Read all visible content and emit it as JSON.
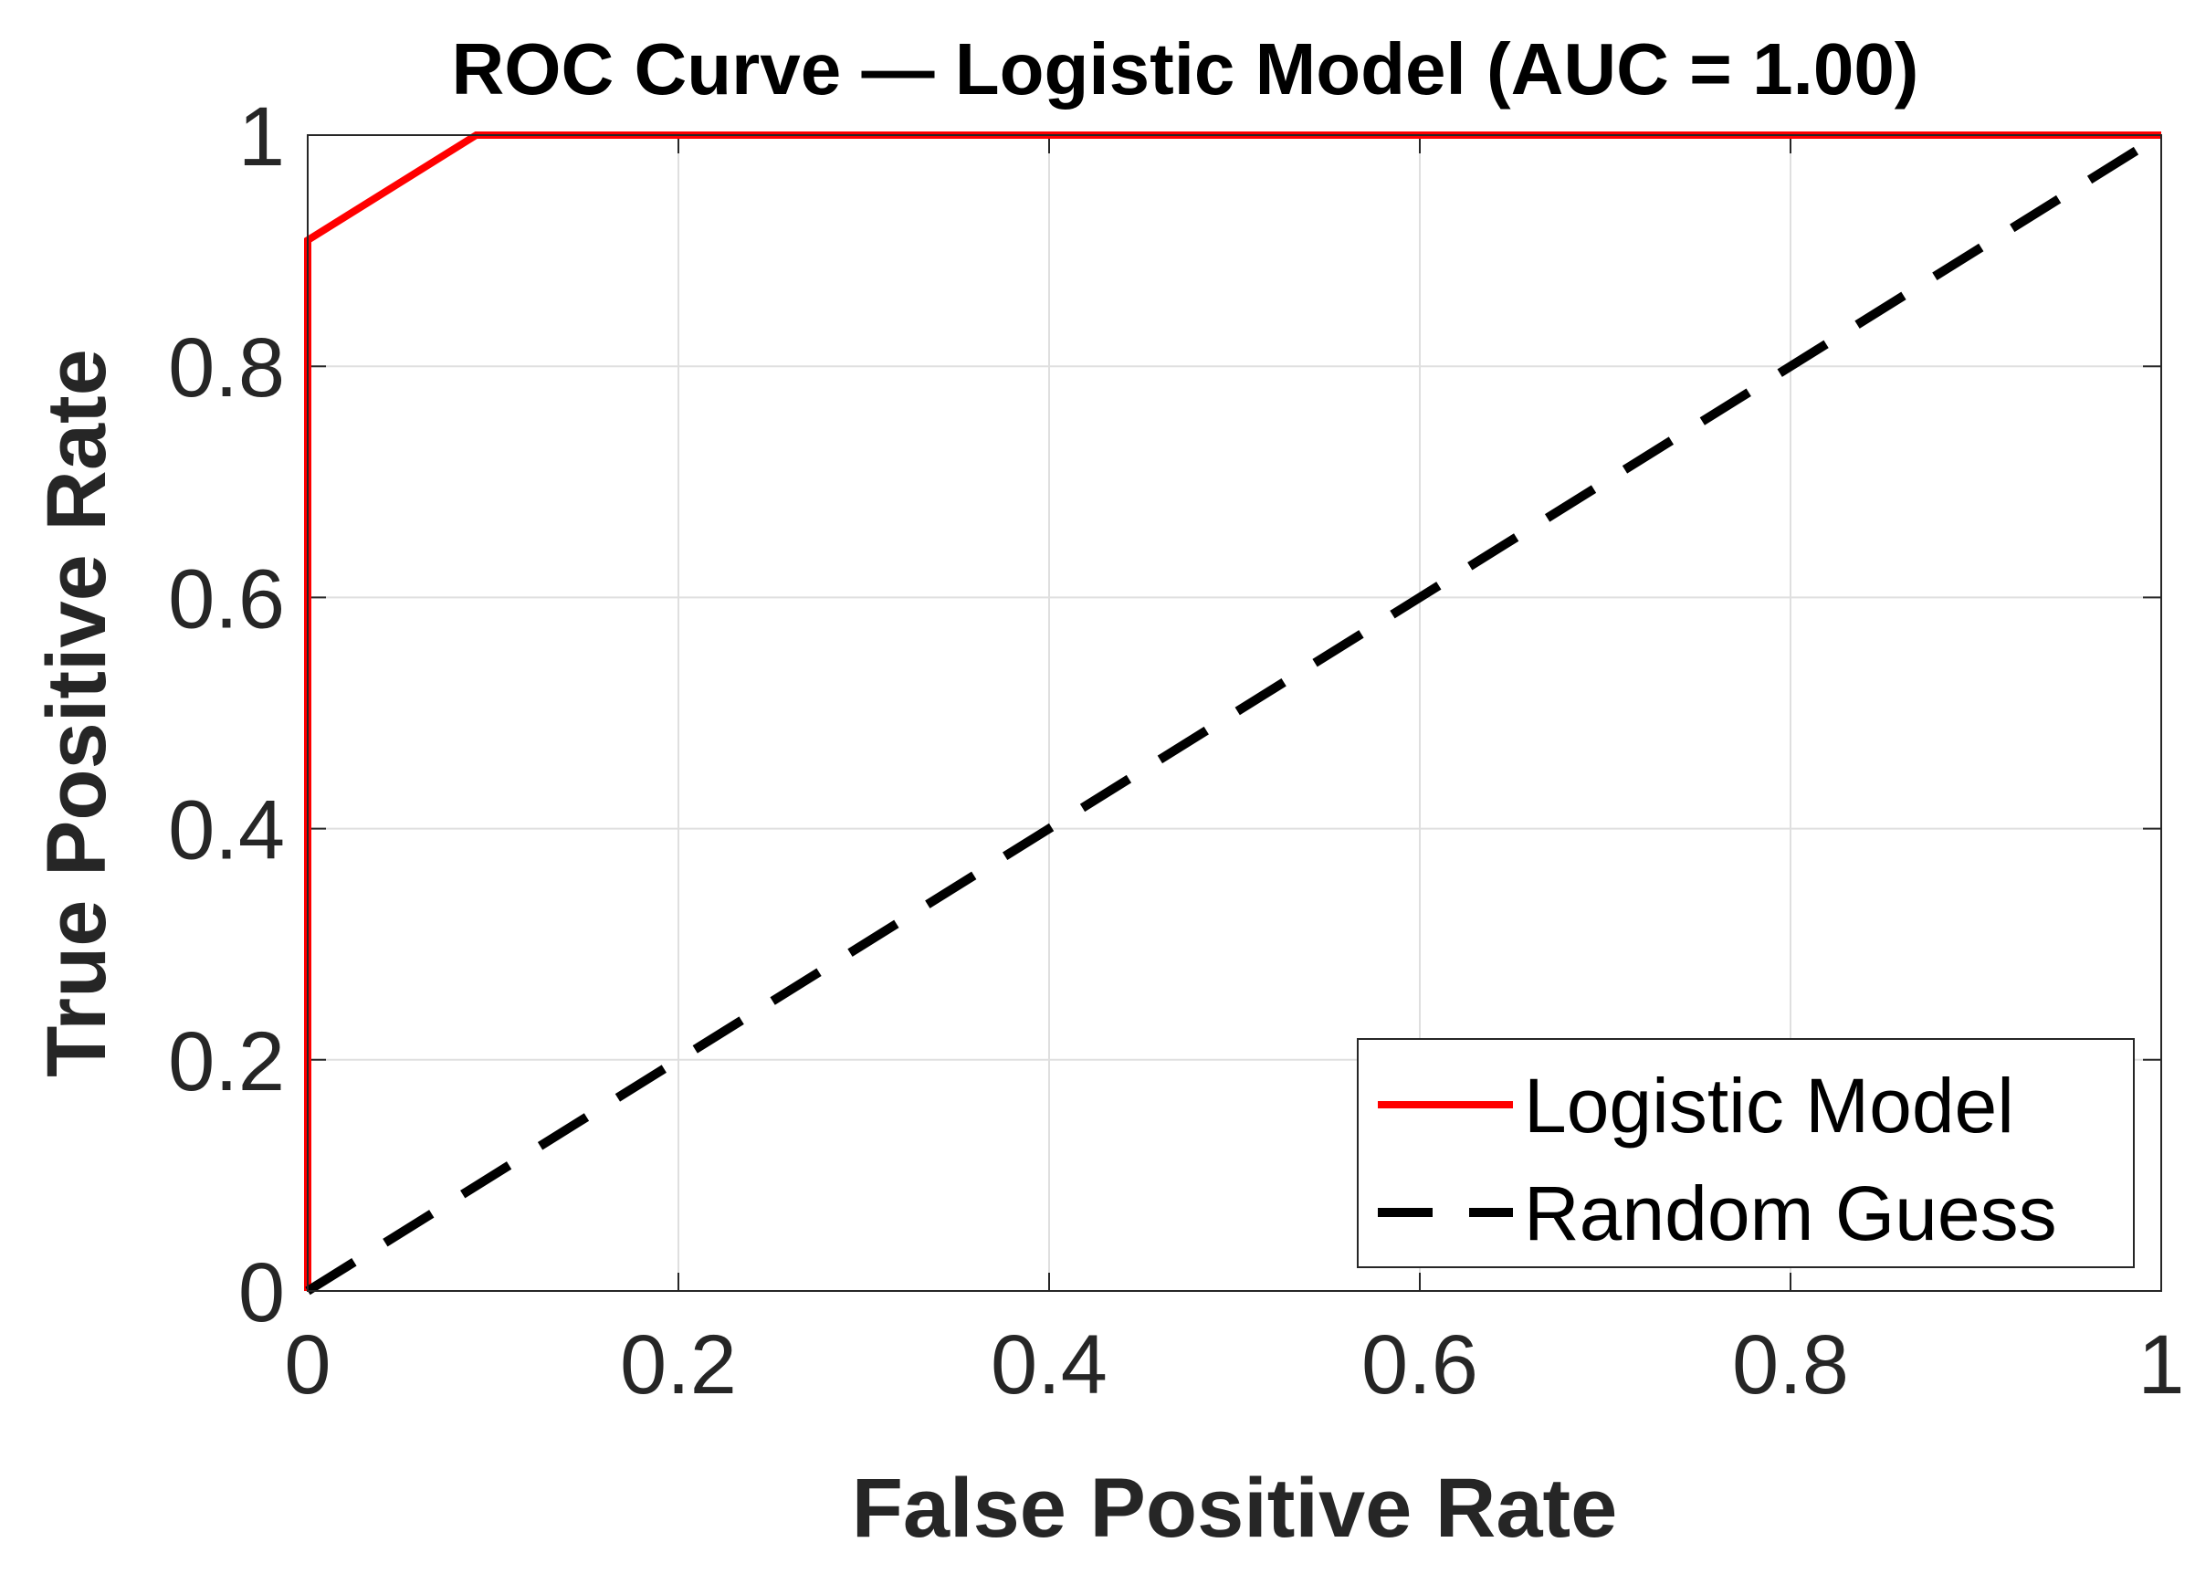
{
  "chart_data": {
    "type": "line",
    "title": "ROC Curve — Logistic Model (AUC = 1.00)",
    "xlabel": "False Positive Rate",
    "ylabel": "True Positive Rate",
    "xlim": [
      0,
      1
    ],
    "ylim": [
      0,
      1
    ],
    "xticks": [
      0,
      0.2,
      0.4,
      0.6,
      0.8,
      1
    ],
    "yticks": [
      0,
      0.2,
      0.4,
      0.6,
      0.8,
      1
    ],
    "xtick_labels": [
      "0",
      "0.2",
      "0.4",
      "0.6",
      "0.8",
      "1"
    ],
    "ytick_labels": [
      "0",
      "0.2",
      "0.4",
      "0.6",
      "0.8",
      "1"
    ],
    "grid": true,
    "legend_position": "bottom-right",
    "series": [
      {
        "name": "Logistic Model",
        "color": "#ff0000",
        "style": "solid",
        "x": [
          0,
          0,
          0.0909,
          1
        ],
        "y": [
          0,
          0.9091,
          1,
          1
        ]
      },
      {
        "name": "Random Guess",
        "color": "#000000",
        "style": "dashed",
        "x": [
          0,
          1
        ],
        "y": [
          0,
          1
        ]
      }
    ]
  }
}
